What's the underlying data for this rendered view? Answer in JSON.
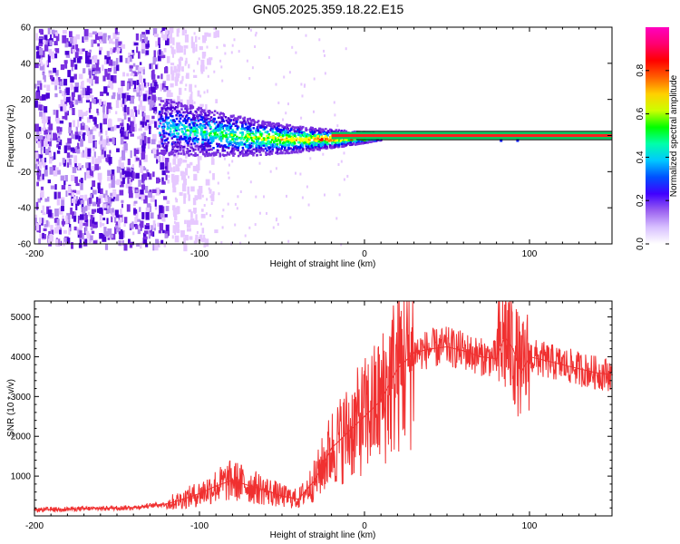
{
  "title": "GN05.2025.359.18.22.E15",
  "chart_data": [
    {
      "type": "heatmap",
      "title": "GN05.2025.359.18.22.E15",
      "xlabel": "Height of straight line (km)",
      "ylabel": "Frequency (Hz)",
      "xlim": [
        -200,
        150
      ],
      "ylim": [
        -60,
        60
      ],
      "xticks": [
        -200,
        -100,
        0,
        100
      ],
      "yticks": [
        -60,
        -40,
        -20,
        0,
        20,
        40,
        60
      ],
      "colorbar": {
        "label": "Normalized spectral amplitude",
        "range": [
          0,
          1
        ],
        "ticks": [
          0.0,
          0.2,
          0.4,
          0.6,
          0.8
        ],
        "tick_labels": [
          "0.0",
          "0.2",
          "0.4",
          "0.6",
          "0.8"
        ]
      },
      "features": {
        "noise_region_x": [
          -200,
          -120
        ],
        "carrier_frequency": 0,
        "carrier_band_hz": [
          -2,
          2
        ]
      },
      "colors": [
        "#e6c8ff",
        "#b48cf0",
        "#7a30e0",
        "#4b00d6",
        "#0014ff",
        "#00b4ff",
        "#00ffb4",
        "#00ff00",
        "#ffff00",
        "#ff8000",
        "#ff0000",
        "#ff0080",
        "#ff00c8"
      ]
    },
    {
      "type": "line",
      "xlabel": "Height of straight line (km)",
      "ylabel": "SNR (10 * v/v)",
      "xlim": [
        -200,
        150
      ],
      "ylim": [
        0,
        5400
      ],
      "xticks": [
        -200,
        -100,
        0,
        100
      ],
      "yticks": [
        1000,
        2000,
        3000,
        4000,
        5000
      ],
      "series": [
        {
          "name": "SNR",
          "color": "#f03030",
          "x": [
            -200,
            -180,
            -160,
            -140,
            -120,
            -110,
            -100,
            -90,
            -80,
            -70,
            -60,
            -50,
            -40,
            -30,
            -20,
            -10,
            0,
            10,
            20,
            30,
            40,
            50,
            60,
            70,
            80,
            85,
            90,
            95,
            100,
            110,
            120,
            130,
            140,
            150
          ],
          "y": [
            150,
            170,
            190,
            210,
            300,
            420,
            560,
            750,
            900,
            760,
            640,
            500,
            420,
            900,
            1700,
            2100,
            2500,
            2900,
            3700,
            4100,
            4200,
            4250,
            4150,
            4000,
            3950,
            4500,
            4200,
            3600,
            4000,
            3900,
            3800,
            3700,
            3600,
            3550
          ]
        }
      ]
    }
  ]
}
